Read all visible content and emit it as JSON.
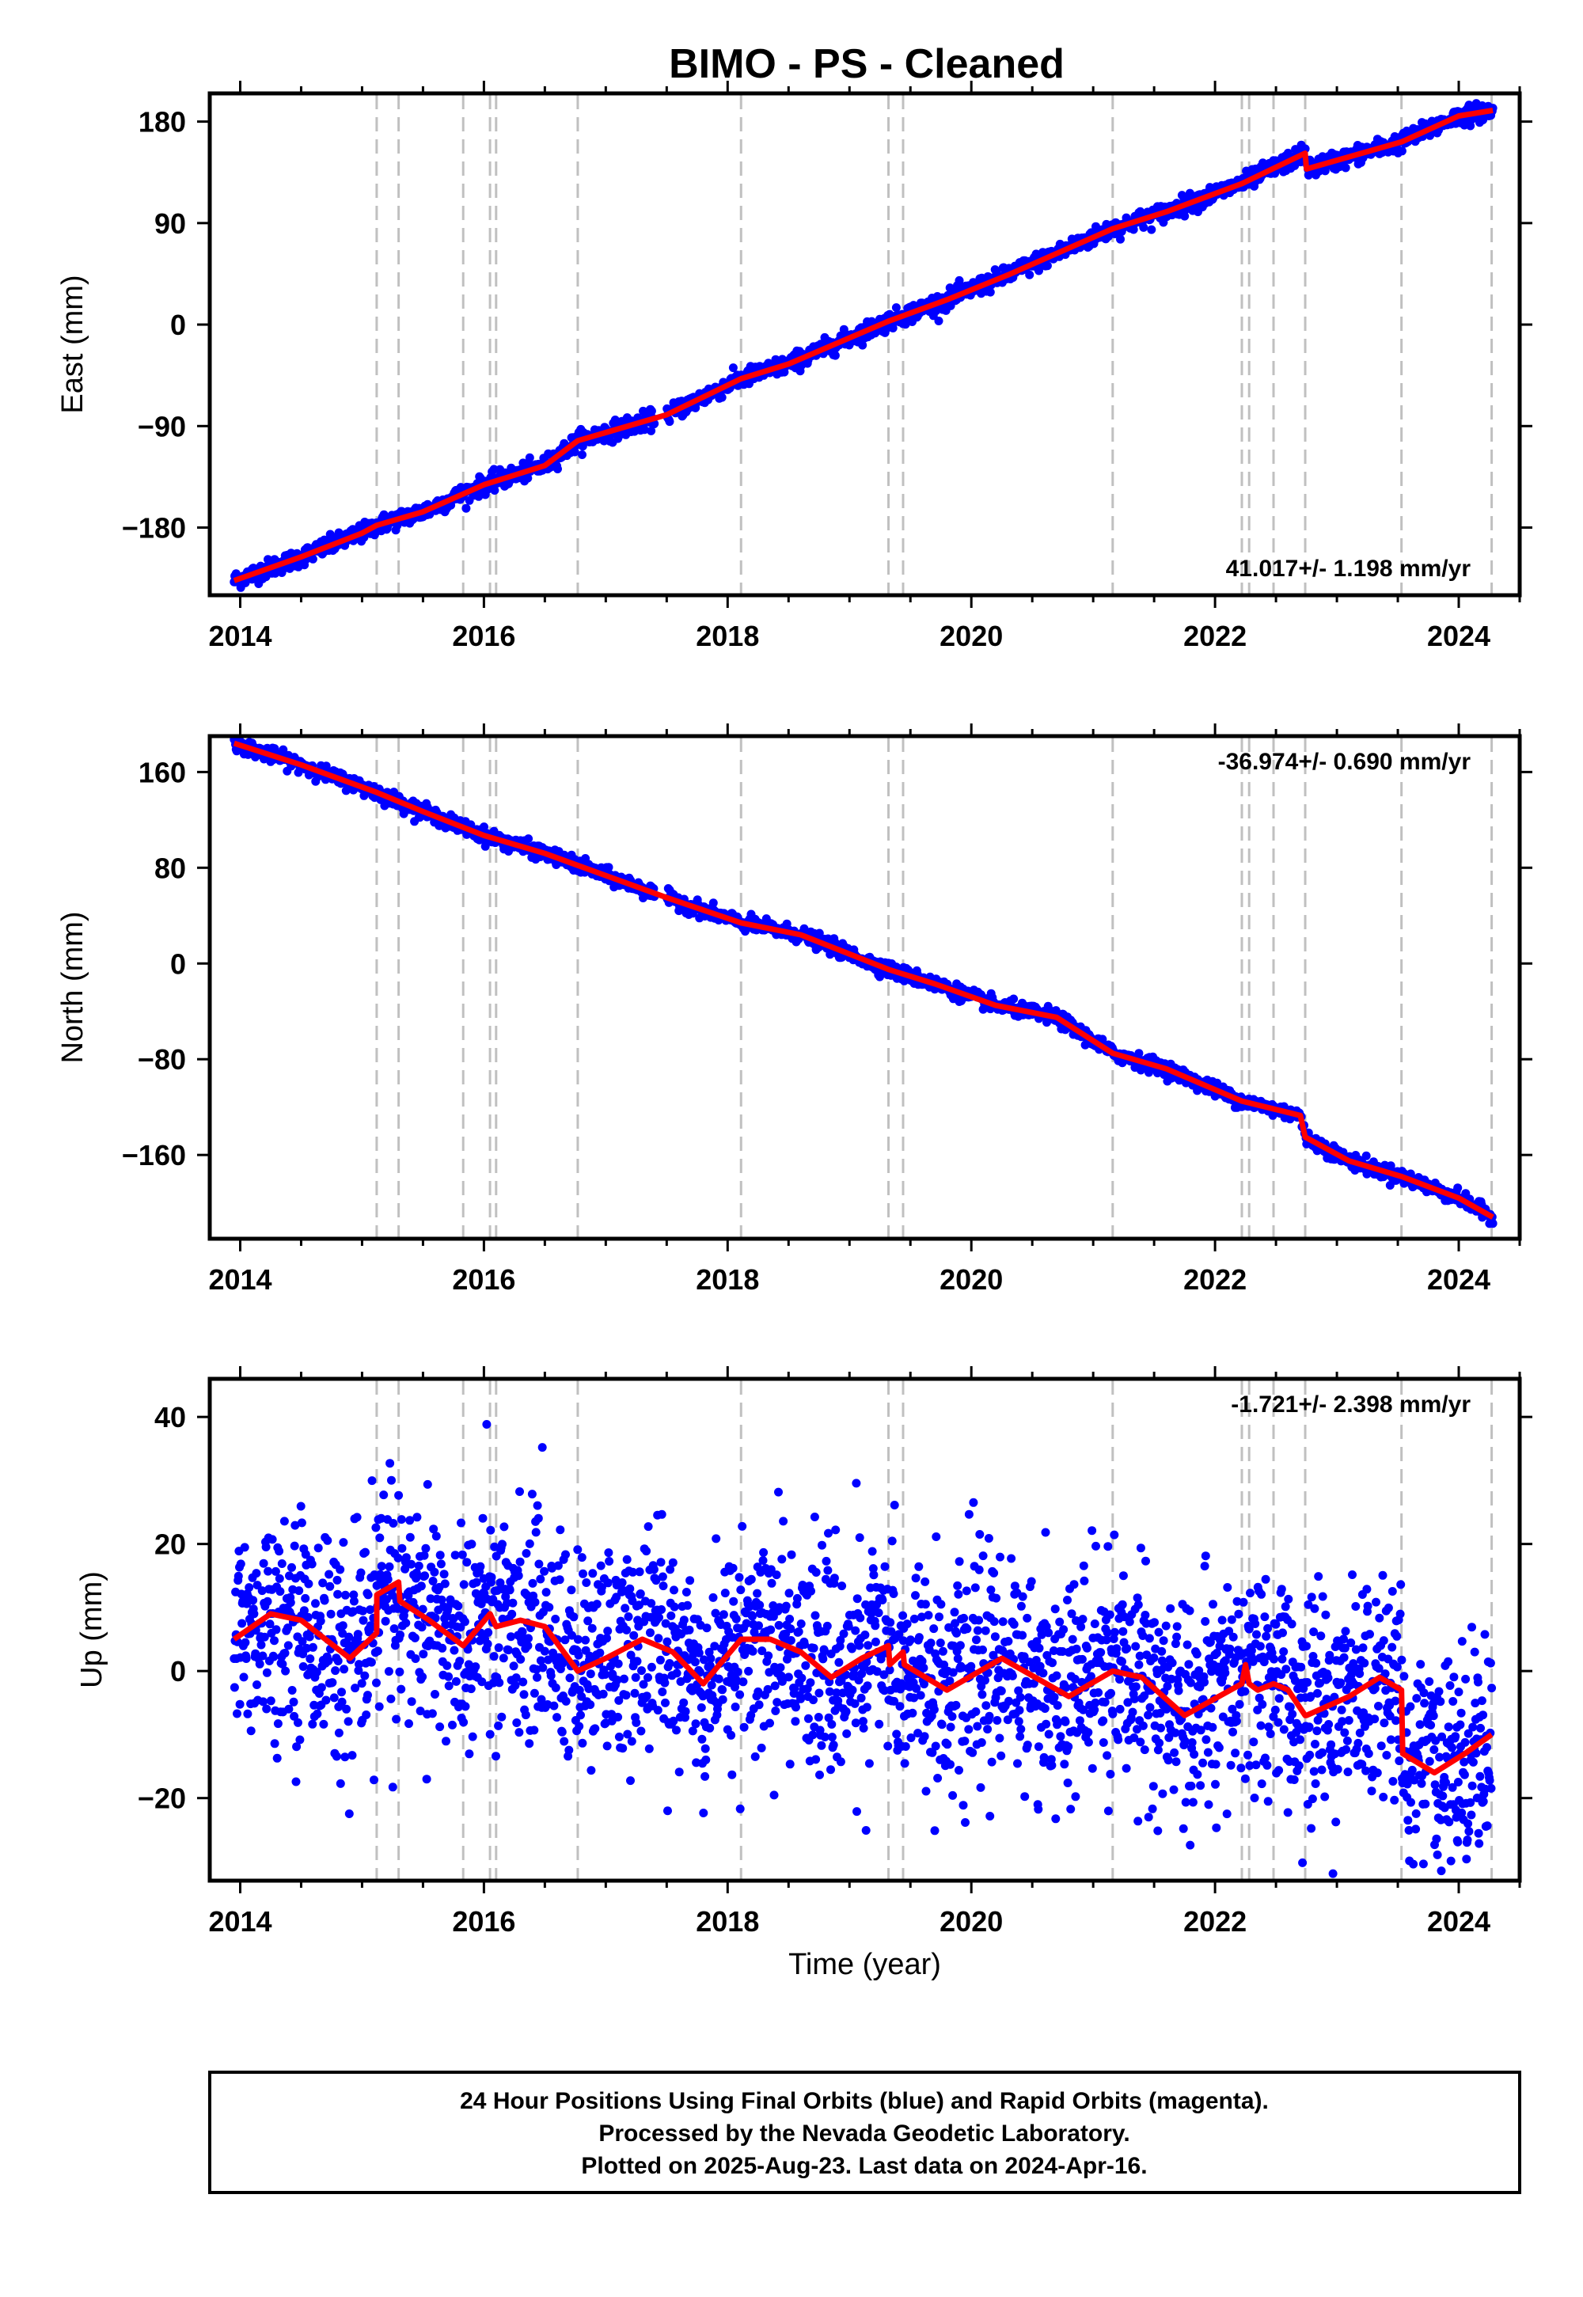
{
  "title": "BIMO  - PS - Cleaned",
  "footer": {
    "lines": [
      "24 Hour Positions Using Final Orbits (blue) and Rapid Orbits (magenta).",
      "Processed by the Nevada Geodetic Laboratory.",
      "Plotted on 2025-Aug-23. Last data on 2024-Apr-16."
    ]
  },
  "colors": {
    "final_orbits": "#0000ff",
    "rapid_orbits": "#ff00ff",
    "model": "#ff0000",
    "event_lines": "#c0c0c0"
  },
  "chart_data": [
    {
      "type": "scatter",
      "name": "east",
      "ylabel": "East (mm)",
      "xlabel": "",
      "rate_label": "41.017+/- 1.198 mm/yr",
      "rate_position": "bottom-right",
      "xlim": [
        2013.75,
        2024.5
      ],
      "ylim": [
        -240,
        205
      ],
      "xticks": [
        2014,
        2016,
        2018,
        2020,
        2022,
        2024
      ],
      "yticks": [
        -180,
        -90,
        0,
        90,
        180
      ],
      "ytick_labels": [
        "−180",
        "−90",
        "0",
        "90",
        "180"
      ],
      "event_lines": [
        2015.12,
        2015.3,
        2015.83,
        2016.05,
        2016.1,
        2016.77,
        2018.11,
        2019.32,
        2019.44,
        2021.16,
        2022.22,
        2022.28,
        2022.48,
        2022.74,
        2023.53,
        2024.27
      ],
      "series": [
        {
          "kind": "model",
          "color": "#ff0000",
          "x": [
            2013.95,
            2014.5,
            2015.0,
            2015.12,
            2015.5,
            2016.0,
            2016.5,
            2016.77,
            2017.5,
            2018.11,
            2018.5,
            2019.32,
            2019.8,
            2020.3,
            2021.16,
            2021.6,
            2022.22,
            2022.74,
            2022.75,
            2023.53,
            2024.0,
            2024.28
          ],
          "y": [
            -227,
            -206,
            -185,
            -178,
            -166,
            -142,
            -125,
            -103,
            -80,
            -48,
            -35,
            3,
            22,
            44,
            85,
            100,
            125,
            152,
            138,
            162,
            185,
            190
          ]
        }
      ],
      "scatter_noise": 4
    },
    {
      "type": "scatter",
      "name": "north",
      "ylabel": "North (mm)",
      "xlabel": "",
      "rate_label": "-36.974+/- 0.690 mm/yr",
      "rate_position": "top-right",
      "xlim": [
        2013.75,
        2024.5
      ],
      "ylim": [
        -230,
        190
      ],
      "xticks": [
        2014,
        2016,
        2018,
        2020,
        2022,
        2024
      ],
      "yticks": [
        -160,
        -80,
        0,
        80,
        160
      ],
      "ytick_labels": [
        "−160",
        "−80",
        "0",
        "80",
        "160"
      ],
      "event_lines": [
        2015.12,
        2015.3,
        2015.83,
        2016.05,
        2016.1,
        2016.77,
        2018.11,
        2019.32,
        2019.44,
        2021.16,
        2022.22,
        2022.28,
        2022.48,
        2022.74,
        2023.53,
        2024.27
      ],
      "series": [
        {
          "kind": "model",
          "color": "#ff0000",
          "x": [
            2013.95,
            2014.5,
            2015.12,
            2015.5,
            2016.0,
            2016.5,
            2016.77,
            2017.5,
            2018.11,
            2018.6,
            2019.32,
            2019.7,
            2020.2,
            2020.7,
            2021.16,
            2021.6,
            2022.22,
            2022.7,
            2022.74,
            2023.1,
            2023.53,
            2024.0,
            2024.28
          ],
          "y": [
            184,
            166,
            143,
            127,
            107,
            92,
            82,
            55,
            34,
            24,
            -5,
            -17,
            -35,
            -45,
            -75,
            -88,
            -115,
            -127,
            -145,
            -165,
            -178,
            -196,
            -212
          ]
        }
      ],
      "scatter_noise": 3
    },
    {
      "type": "scatter",
      "name": "up",
      "ylabel": "Up (mm)",
      "xlabel": "Time (year)",
      "rate_label": "-1.721+/- 2.398 mm/yr",
      "rate_position": "top-right",
      "xlim": [
        2013.75,
        2024.5
      ],
      "ylim": [
        -33,
        46
      ],
      "xticks": [
        2014,
        2016,
        2018,
        2020,
        2022,
        2024
      ],
      "yticks": [
        -20,
        0,
        20,
        40
      ],
      "ytick_labels": [
        "−20",
        "0",
        "20",
        "40"
      ],
      "event_lines": [
        2015.12,
        2015.3,
        2015.83,
        2016.05,
        2016.1,
        2016.77,
        2018.11,
        2019.32,
        2019.44,
        2021.16,
        2022.22,
        2022.28,
        2022.48,
        2022.74,
        2023.53,
        2024.27
      ],
      "series": [
        {
          "kind": "model",
          "color": "#ff0000",
          "x": [
            2013.95,
            2014.25,
            2014.5,
            2014.9,
            2015.12,
            2015.121,
            2015.3,
            2015.31,
            2015.55,
            2015.83,
            2016.05,
            2016.1,
            2016.3,
            2016.5,
            2016.77,
            2017.0,
            2017.3,
            2017.55,
            2017.8,
            2018.11,
            2018.35,
            2018.6,
            2018.85,
            2019.1,
            2019.32,
            2019.33,
            2019.44,
            2019.45,
            2019.8,
            2020.25,
            2020.8,
            2021.16,
            2021.4,
            2021.75,
            2022.22,
            2022.25,
            2022.28,
            2022.35,
            2022.48,
            2022.6,
            2022.74,
            2022.75,
            2023.1,
            2023.35,
            2023.53,
            2023.54,
            2023.8,
            2024.05,
            2024.27
          ],
          "y": [
            5,
            9,
            8,
            2,
            6,
            12,
            14,
            11,
            8,
            4,
            9,
            7,
            8,
            7,
            0,
            2,
            5,
            3,
            -2,
            5,
            5,
            3,
            -1,
            2,
            4,
            1,
            3,
            1,
            -3,
            2,
            -4,
            0,
            -1,
            -7,
            -2,
            1,
            -2,
            -3,
            -2,
            -3,
            -7,
            -7,
            -4,
            -1,
            -3,
            -13,
            -16,
            -13,
            -10
          ]
        }
      ],
      "scatter_noise": 8.5
    }
  ]
}
